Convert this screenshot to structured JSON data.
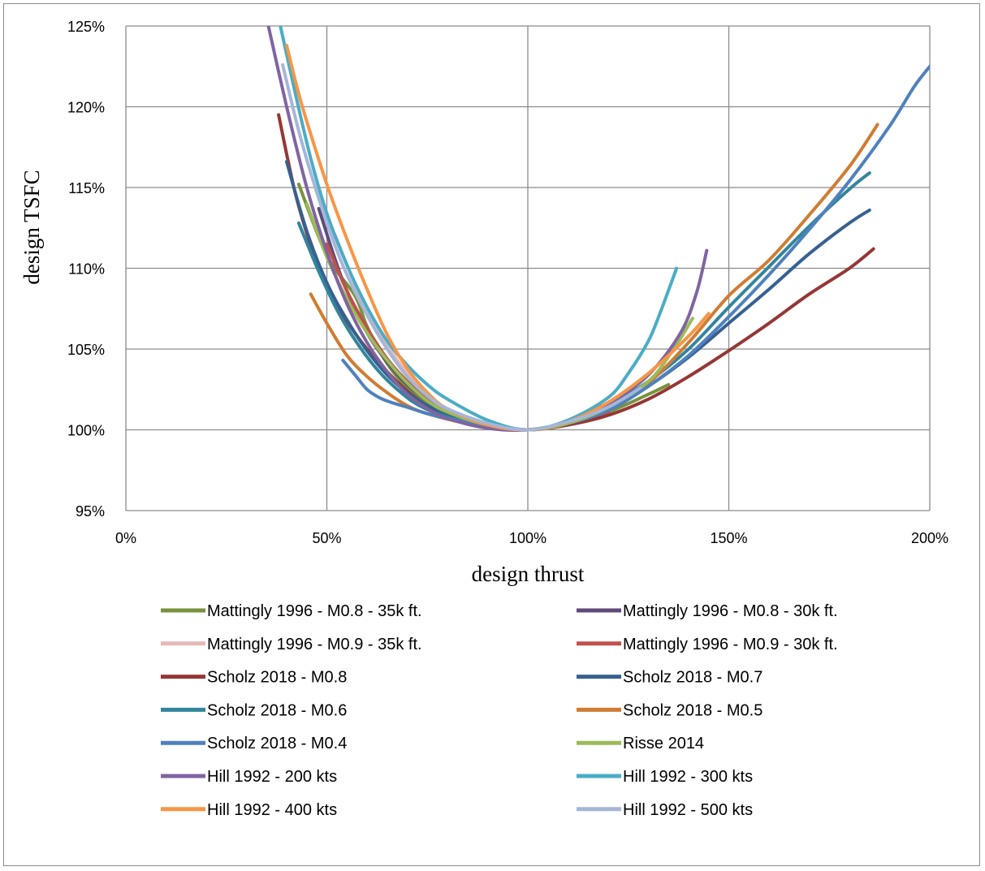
{
  "chart_data": {
    "type": "line",
    "title": "",
    "xlabel": "design thrust",
    "ylabel": "design TSFC",
    "xlim": [
      0,
      200
    ],
    "ylim": [
      95,
      125
    ],
    "x_unit": "%",
    "y_unit": "%",
    "xticks": [
      0,
      50,
      100,
      150,
      200
    ],
    "yticks": [
      95,
      100,
      105,
      110,
      115,
      120,
      125
    ],
    "xtick_labels": [
      "0%",
      "50%",
      "100%",
      "150%",
      "200%"
    ],
    "ytick_labels": [
      "95%",
      "100%",
      "105%",
      "110%",
      "115%",
      "120%",
      "125%"
    ],
    "grid": true,
    "legend_position": "bottom, two columns",
    "series": [
      {
        "name": "Mattingly 1996 - M0.8 - 35k ft.",
        "color": "#77933c",
        "points": [
          [
            43,
            115.2
          ],
          [
            50,
            110.8
          ],
          [
            57,
            108.3
          ],
          [
            60,
            106.4
          ],
          [
            65,
            104.1
          ],
          [
            70,
            102.6
          ],
          [
            75,
            101.6
          ],
          [
            80,
            100.9
          ],
          [
            90,
            100.3
          ],
          [
            100,
            100
          ],
          [
            110,
            100.4
          ],
          [
            120,
            101.1
          ],
          [
            130,
            102.2
          ],
          [
            135,
            102.8
          ]
        ]
      },
      {
        "name": "Mattingly 1996 - M0.8 - 30k ft.",
        "color": "#604a7b",
        "points": [
          [
            48,
            113.7
          ],
          [
            52,
            110.6
          ],
          [
            55,
            108.6
          ],
          [
            60,
            106
          ],
          [
            65,
            104.2
          ],
          [
            70,
            102.8
          ],
          [
            75,
            101.8
          ],
          [
            80,
            101
          ],
          [
            90,
            100.3
          ],
          [
            100,
            100
          ],
          [
            110,
            100.5
          ],
          [
            118,
            101.5
          ]
        ]
      },
      {
        "name": "Mattingly 1996 - M0.9 - 35k ft.",
        "color": "#e6b9b8",
        "points": [
          [
            52,
            112.1
          ],
          [
            56,
            109.6
          ],
          [
            60,
            107.3
          ],
          [
            65,
            105.2
          ],
          [
            70,
            103.5
          ],
          [
            75,
            102.2
          ],
          [
            80,
            101.3
          ],
          [
            90,
            100.4
          ],
          [
            100,
            100
          ],
          [
            110,
            100.5
          ],
          [
            118,
            101.4
          ]
        ]
      },
      {
        "name": "Mattingly 1996 - M0.9 - 30k ft.",
        "color": "#c0504d",
        "points": [
          [
            50,
            111.5
          ],
          [
            55,
            108.6
          ],
          [
            60,
            106.3
          ],
          [
            65,
            104.4
          ],
          [
            70,
            103
          ],
          [
            75,
            101.9
          ],
          [
            80,
            101.1
          ],
          [
            90,
            100.3
          ],
          [
            100,
            100
          ],
          [
            110,
            100.4
          ],
          [
            120,
            101.1
          ]
        ]
      },
      {
        "name": "Scholz 2018 - M0.8",
        "color": "#953735",
        "points": [
          [
            38,
            119.5
          ],
          [
            42,
            114.8
          ],
          [
            46,
            111.4
          ],
          [
            50,
            108.8
          ],
          [
            55,
            106.7
          ],
          [
            60,
            105
          ],
          [
            65,
            103.6
          ],
          [
            70,
            102.4
          ],
          [
            75,
            101.5
          ],
          [
            80,
            100.9
          ],
          [
            90,
            100.3
          ],
          [
            100,
            100
          ],
          [
            110,
            100.3
          ],
          [
            120,
            100.9
          ],
          [
            130,
            101.9
          ],
          [
            140,
            103.3
          ],
          [
            150,
            104.9
          ],
          [
            160,
            106.6
          ],
          [
            170,
            108.4
          ],
          [
            180,
            110
          ],
          [
            186,
            111.2
          ]
        ]
      },
      {
        "name": "Scholz 2018 - M0.7",
        "color": "#376092",
        "points": [
          [
            40,
            116.6
          ],
          [
            45,
            112.3
          ],
          [
            50,
            109.1
          ],
          [
            55,
            106.8
          ],
          [
            60,
            104.9
          ],
          [
            65,
            103.4
          ],
          [
            70,
            102.3
          ],
          [
            75,
            101.5
          ],
          [
            80,
            100.9
          ],
          [
            90,
            100.3
          ],
          [
            100,
            100
          ],
          [
            110,
            100.4
          ],
          [
            120,
            101.2
          ],
          [
            130,
            102.7
          ],
          [
            140,
            104.5
          ],
          [
            150,
            106.6
          ],
          [
            160,
            108.7
          ],
          [
            170,
            110.9
          ],
          [
            180,
            112.8
          ],
          [
            185,
            113.6
          ]
        ]
      },
      {
        "name": "Scholz 2018 - M0.6",
        "color": "#31859c",
        "points": [
          [
            43,
            112.8
          ],
          [
            48,
            109.8
          ],
          [
            53,
            107.2
          ],
          [
            58,
            105.2
          ],
          [
            63,
            103.6
          ],
          [
            68,
            102.4
          ],
          [
            73,
            101.5
          ],
          [
            80,
            100.8
          ],
          [
            90,
            100.3
          ],
          [
            100,
            100
          ],
          [
            110,
            100.5
          ],
          [
            120,
            101.5
          ],
          [
            130,
            103
          ],
          [
            140,
            105
          ],
          [
            150,
            107.6
          ],
          [
            160,
            110.1
          ],
          [
            170,
            112.6
          ],
          [
            180,
            114.9
          ],
          [
            185,
            115.9
          ]
        ]
      },
      {
        "name": "Scholz 2018 - M0.5",
        "color": "#d07c33",
        "points": [
          [
            46,
            108.4
          ],
          [
            50,
            106.6
          ],
          [
            55,
            104.6
          ],
          [
            60,
            103.3
          ],
          [
            65,
            102.3
          ],
          [
            70,
            101.5
          ],
          [
            75,
            101
          ],
          [
            85,
            100.4
          ],
          [
            100,
            100
          ],
          [
            110,
            100.4
          ],
          [
            120,
            101.3
          ],
          [
            130,
            102.9
          ],
          [
            140,
            105.4
          ],
          [
            150,
            108.3
          ],
          [
            160,
            110.5
          ],
          [
            170,
            113.3
          ],
          [
            180,
            116.3
          ],
          [
            187,
            118.9
          ]
        ]
      },
      {
        "name": "Scholz 2018 - M0.4",
        "color": "#4f81bd",
        "points": [
          [
            54,
            104.3
          ],
          [
            57,
            103.4
          ],
          [
            60,
            102.5
          ],
          [
            63,
            102
          ],
          [
            66,
            101.7
          ],
          [
            70,
            101.4
          ],
          [
            75,
            101
          ],
          [
            80,
            100.7
          ],
          [
            90,
            100.3
          ],
          [
            100,
            100
          ],
          [
            110,
            100.4
          ],
          [
            120,
            101.2
          ],
          [
            130,
            102.7
          ],
          [
            140,
            104.6
          ],
          [
            150,
            107
          ],
          [
            160,
            109.6
          ],
          [
            170,
            112.4
          ],
          [
            180,
            115.4
          ],
          [
            190,
            118.8
          ],
          [
            196,
            121.2
          ],
          [
            200,
            122.5
          ]
        ]
      },
      {
        "name": "Risse 2014",
        "color": "#9bbb59",
        "points": [
          [
            45,
            114
          ],
          [
            50,
            110.7
          ],
          [
            55,
            108.1
          ],
          [
            60,
            106
          ],
          [
            65,
            104.3
          ],
          [
            70,
            102.9
          ],
          [
            75,
            101.8
          ],
          [
            80,
            101.1
          ],
          [
            90,
            100.3
          ],
          [
            100,
            100
          ],
          [
            110,
            100.4
          ],
          [
            120,
            101.4
          ],
          [
            130,
            103
          ],
          [
            136,
            104.9
          ],
          [
            141,
            106.9
          ]
        ]
      },
      {
        "name": "Hill 1992 - 200 kts",
        "color": "#8064a2",
        "points": [
          [
            35,
            125.5
          ],
          [
            40,
            120
          ],
          [
            45,
            115
          ],
          [
            50,
            111
          ],
          [
            55,
            107.8
          ],
          [
            60,
            105.4
          ],
          [
            65,
            103.6
          ],
          [
            70,
            102.2
          ],
          [
            75,
            101.3
          ],
          [
            80,
            100.7
          ],
          [
            90,
            100.1
          ],
          [
            100,
            100
          ],
          [
            110,
            100.5
          ],
          [
            120,
            101.6
          ],
          [
            130,
            103.4
          ],
          [
            138,
            106
          ],
          [
            142,
            108.5
          ],
          [
            144.5,
            111.1
          ]
        ]
      },
      {
        "name": "Hill 1992 - 300 kts",
        "color": "#4bacc6",
        "points": [
          [
            38,
            125.5
          ],
          [
            42,
            121
          ],
          [
            46,
            116.8
          ],
          [
            50,
            113.4
          ],
          [
            55,
            110.2
          ],
          [
            60,
            107.6
          ],
          [
            65,
            105.5
          ],
          [
            70,
            104
          ],
          [
            75,
            102.8
          ],
          [
            80,
            101.9
          ],
          [
            90,
            100.6
          ],
          [
            100,
            100
          ],
          [
            110,
            100.6
          ],
          [
            120,
            102
          ],
          [
            125,
            103.5
          ],
          [
            130,
            105.5
          ],
          [
            133,
            107.3
          ],
          [
            137,
            110
          ]
        ]
      },
      {
        "name": "Hill 1992 - 400 kts",
        "color": "#f79646",
        "points": [
          [
            40,
            123.8
          ],
          [
            43,
            120.8
          ],
          [
            46,
            118.3
          ],
          [
            50,
            115.2
          ],
          [
            55,
            111.8
          ],
          [
            60,
            108.7
          ],
          [
            65,
            105.9
          ],
          [
            70,
            103.8
          ],
          [
            75,
            102.3
          ],
          [
            80,
            101.3
          ],
          [
            90,
            100.3
          ],
          [
            100,
            100
          ],
          [
            110,
            100.5
          ],
          [
            120,
            101.7
          ],
          [
            130,
            103.5
          ],
          [
            140,
            105.8
          ],
          [
            145,
            107.2
          ]
        ]
      },
      {
        "name": "Hill 1992 - 500 kts",
        "color": "#a5b6d8",
        "points": [
          [
            39,
            122.6
          ],
          [
            43,
            118.5
          ],
          [
            47,
            115.1
          ],
          [
            51,
            112.1
          ],
          [
            55,
            109.6
          ],
          [
            60,
            107.1
          ],
          [
            65,
            105
          ],
          [
            70,
            103.3
          ],
          [
            75,
            102.1
          ],
          [
            80,
            101.3
          ],
          [
            90,
            100.4
          ],
          [
            100,
            100
          ],
          [
            110,
            100.5
          ],
          [
            120,
            101.4
          ],
          [
            128,
            102.6
          ]
        ]
      }
    ]
  }
}
